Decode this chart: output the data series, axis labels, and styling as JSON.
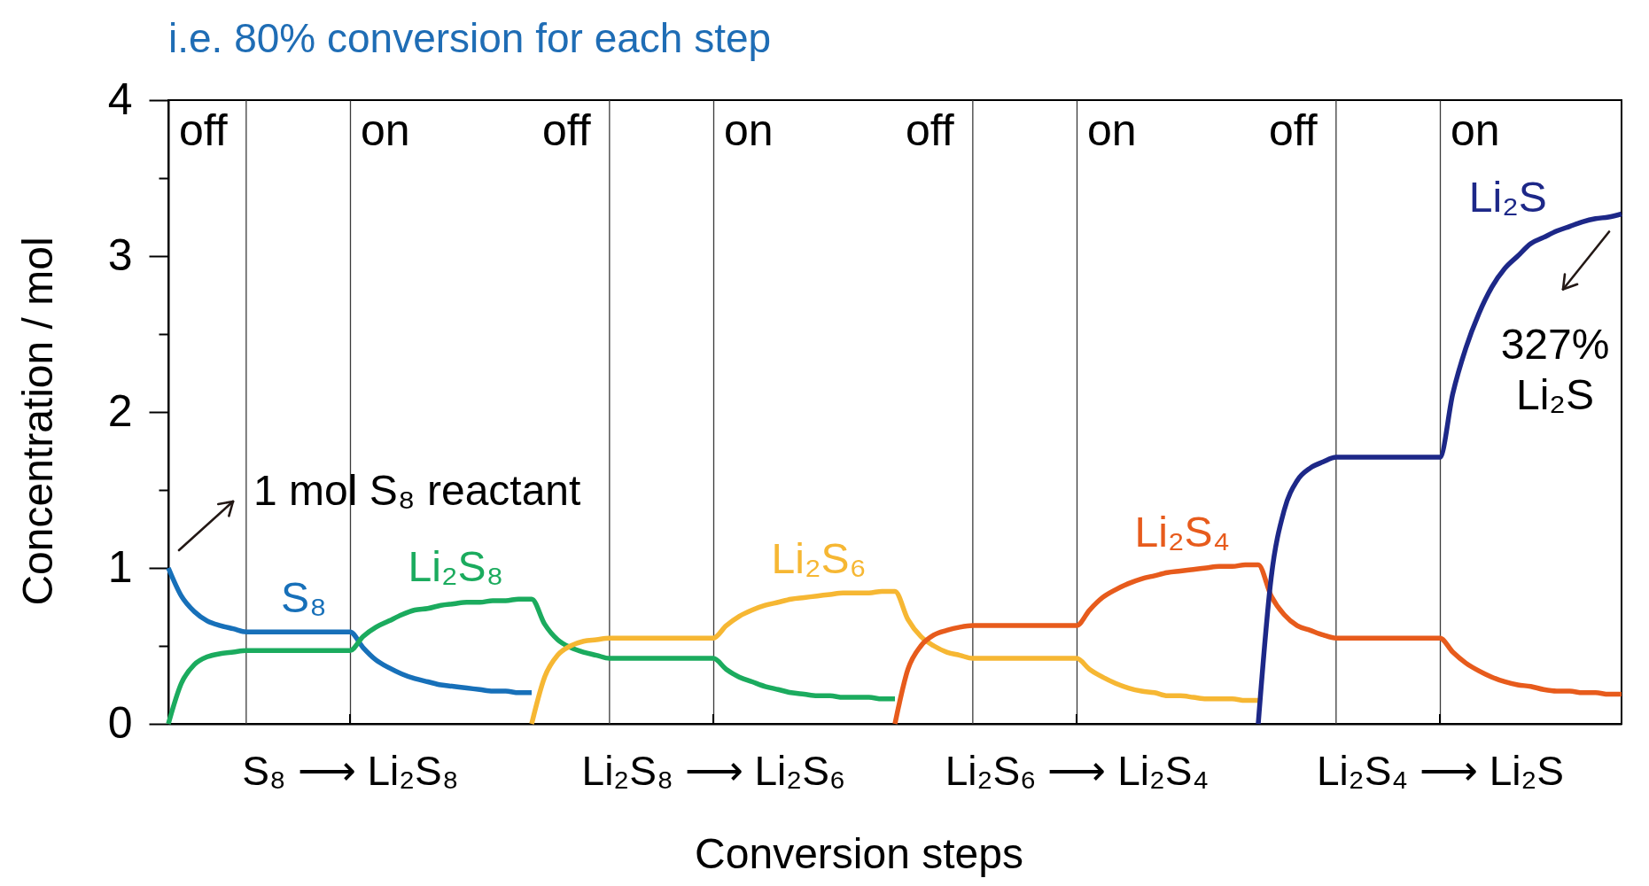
{
  "chart_data": {
    "type": "line",
    "title": "i.e. 80% conversion for each step",
    "xlabel": "Conversion steps",
    "ylabel": "Concentration / mol",
    "categories": [
      null,
      null,
      null,
      null,
      null,
      null,
      null,
      null,
      null,
      null,
      null,
      null,
      null,
      null,
      "S₈ ⟶ Li₂S₈",
      null,
      null,
      null,
      null,
      null,
      null,
      null,
      null,
      null,
      null,
      null,
      null,
      null,
      null,
      null,
      null,
      null,
      null,
      null,
      null,
      null,
      null,
      null,
      null,
      null,
      null,
      null,
      "Li₂S₈ ⟶ Li₂S₆",
      null,
      null,
      null,
      null,
      null,
      null,
      null,
      null,
      null,
      null,
      null,
      null,
      null,
      null,
      null,
      null,
      null,
      null,
      null,
      null,
      null,
      null,
      null,
      null,
      null,
      null,
      null,
      "Li₂S₆ ⟶ Li₂S₄",
      null,
      null,
      null,
      null,
      null,
      null,
      null,
      null,
      null,
      null,
      null,
      null,
      null,
      null,
      null,
      null,
      null,
      null,
      null,
      null,
      null,
      null,
      null,
      null,
      null,
      null,
      null,
      "Li₂S₄ ⟶ Li₂S",
      null,
      null,
      null,
      null,
      null,
      null,
      null,
      null,
      null,
      null,
      null,
      null,
      null,
      null
    ],
    "ylim": [
      0,
      4
    ],
    "yticks": [
      0,
      {
        "value": 0.5,
        "label": null
      },
      1,
      {
        "value": 1.5,
        "label": null
      },
      2,
      {
        "value": 2.5,
        "label": null
      },
      3,
      {
        "value": 3.5,
        "label": null
      },
      4
    ],
    "grid": "x",
    "series": [
      {
        "name": "S₈",
        "color": "#1770b9",
        "values": [
          1,
          0.82,
          0.72,
          0.66,
          0.63,
          0.61,
          0.59,
          0.59,
          0.59,
          0.59,
          0.59,
          0.59,
          0.59,
          0.59,
          0.59,
          0.49,
          0.41,
          0.36,
          0.32,
          0.29,
          0.27,
          0.25,
          0.24,
          0.23,
          0.22,
          0.21,
          0.21,
          0.2,
          0.2,
          null,
          null,
          null,
          null,
          null,
          null,
          null,
          null,
          null,
          null,
          null,
          null,
          null,
          null,
          null,
          null,
          null,
          null,
          null,
          null,
          null,
          null,
          null,
          null,
          null,
          null,
          null,
          null,
          null,
          null,
          null,
          null,
          null,
          null,
          null,
          null,
          null,
          null,
          null,
          null,
          null,
          null,
          null,
          null,
          null,
          null,
          null,
          null,
          null,
          null,
          null,
          null,
          null,
          null,
          null,
          null,
          null,
          null,
          null,
          null,
          null,
          null,
          null,
          null,
          null,
          null,
          null,
          null,
          null,
          null,
          null,
          null,
          null,
          null,
          null,
          null,
          null,
          null,
          null,
          null,
          null,
          null,
          null,
          null
        ]
      },
      {
        "name": "Li₂S₈",
        "color": "#1bab5e",
        "values": [
          0,
          0.26,
          0.38,
          0.43,
          0.45,
          0.46,
          0.47,
          0.47,
          0.47,
          0.47,
          0.47,
          0.47,
          0.47,
          0.47,
          0.47,
          0.56,
          0.62,
          0.66,
          0.7,
          0.73,
          0.74,
          0.76,
          0.77,
          0.78,
          0.78,
          0.79,
          0.79,
          0.8,
          0.8,
          0.64,
          0.54,
          0.49,
          0.46,
          0.44,
          0.42,
          0.42,
          0.42,
          0.42,
          0.42,
          0.42,
          0.42,
          0.42,
          0.42,
          0.35,
          0.3,
          0.27,
          0.24,
          0.22,
          0.2,
          0.19,
          0.18,
          0.18,
          0.17,
          0.17,
          0.17,
          0.16,
          0.16,
          null,
          null,
          null,
          null,
          null,
          null,
          null,
          null,
          null,
          null,
          null,
          null,
          null,
          null,
          null,
          null,
          null,
          null,
          null,
          null,
          null,
          null,
          null,
          null,
          null,
          null,
          null,
          null,
          null,
          null,
          null,
          null,
          null,
          null,
          null,
          null,
          null,
          null,
          null,
          null,
          null,
          null,
          null,
          null,
          null,
          null,
          null,
          null,
          null,
          null,
          null,
          null,
          null,
          null,
          null,
          null
        ]
      },
      {
        "name": "Li₂S₆",
        "color": "#f6b733",
        "values": [
          null,
          null,
          null,
          null,
          null,
          null,
          null,
          null,
          null,
          null,
          null,
          null,
          null,
          null,
          null,
          null,
          null,
          null,
          null,
          null,
          null,
          null,
          null,
          null,
          null,
          null,
          null,
          null,
          0,
          0.3,
          0.44,
          0.5,
          0.53,
          0.54,
          0.55,
          0.55,
          0.55,
          0.55,
          0.55,
          0.55,
          0.55,
          0.55,
          0.55,
          0.63,
          0.69,
          0.73,
          0.76,
          0.78,
          0.8,
          0.81,
          0.82,
          0.83,
          0.84,
          0.84,
          0.84,
          0.85,
          0.85,
          0.67,
          0.56,
          0.5,
          0.46,
          0.44,
          0.42,
          0.42,
          0.42,
          0.42,
          0.42,
          0.42,
          0.42,
          0.42,
          0.42,
          0.35,
          0.3,
          0.26,
          0.23,
          0.21,
          0.2,
          0.18,
          0.18,
          0.17,
          0.16,
          0.16,
          0.16,
          0.15,
          0.15,
          null,
          null,
          null,
          null,
          null,
          null,
          null,
          null,
          null,
          null,
          null,
          null,
          null,
          null,
          null,
          null,
          null,
          null,
          null,
          null,
          null,
          null,
          null,
          null,
          null,
          null,
          null,
          null
        ]
      },
      {
        "name": "Li₂S₄",
        "color": "#e75b1c",
        "values": [
          null,
          null,
          null,
          null,
          null,
          null,
          null,
          null,
          null,
          null,
          null,
          null,
          null,
          null,
          null,
          null,
          null,
          null,
          null,
          null,
          null,
          null,
          null,
          null,
          null,
          null,
          null,
          null,
          null,
          null,
          null,
          null,
          null,
          null,
          null,
          null,
          null,
          null,
          null,
          null,
          null,
          null,
          null,
          null,
          null,
          null,
          null,
          null,
          null,
          null,
          null,
          null,
          null,
          null,
          null,
          null,
          0,
          0.35,
          0.5,
          0.57,
          0.6,
          0.62,
          0.63,
          0.63,
          0.63,
          0.63,
          0.63,
          0.63,
          0.63,
          0.63,
          0.63,
          0.73,
          0.81,
          0.86,
          0.9,
          0.93,
          0.95,
          0.97,
          0.98,
          0.99,
          1,
          1.01,
          1.01,
          1.02,
          1.02,
          0.82,
          0.7,
          0.63,
          0.6,
          0.57,
          0.55,
          0.55,
          0.55,
          0.55,
          0.55,
          0.55,
          0.55,
          0.55,
          0.55,
          0.46,
          0.39,
          0.34,
          0.3,
          0.27,
          0.25,
          0.24,
          0.22,
          0.21,
          0.21,
          0.2,
          0.2,
          0.19,
          0.19
        ]
      },
      {
        "name": "Li₂S",
        "color": "#1d2888",
        "values": [
          null,
          null,
          null,
          null,
          null,
          null,
          null,
          null,
          null,
          null,
          null,
          null,
          null,
          null,
          null,
          null,
          null,
          null,
          null,
          null,
          null,
          null,
          null,
          null,
          null,
          null,
          null,
          null,
          null,
          null,
          null,
          null,
          null,
          null,
          null,
          null,
          null,
          null,
          null,
          null,
          null,
          null,
          null,
          null,
          null,
          null,
          null,
          null,
          null,
          null,
          null,
          null,
          null,
          null,
          null,
          null,
          null,
          null,
          null,
          null,
          null,
          null,
          null,
          null,
          null,
          null,
          null,
          null,
          null,
          null,
          null,
          null,
          null,
          null,
          null,
          null,
          null,
          null,
          null,
          null,
          null,
          null,
          null,
          null,
          0,
          0.94,
          1.37,
          1.56,
          1.64,
          1.68,
          1.71,
          1.71,
          1.71,
          1.71,
          1.71,
          1.71,
          1.71,
          1.71,
          1.71,
          2.12,
          2.41,
          2.63,
          2.8,
          2.92,
          3,
          3.08,
          3.12,
          3.16,
          3.19,
          3.22,
          3.24,
          3.25,
          3.27
        ]
      }
    ],
    "annotations": [
      "off",
      "on",
      "off",
      "on",
      "off",
      "on",
      "off",
      "on",
      "1 mol S₈ reactant",
      "327%\nLi₂S"
    ]
  }
}
